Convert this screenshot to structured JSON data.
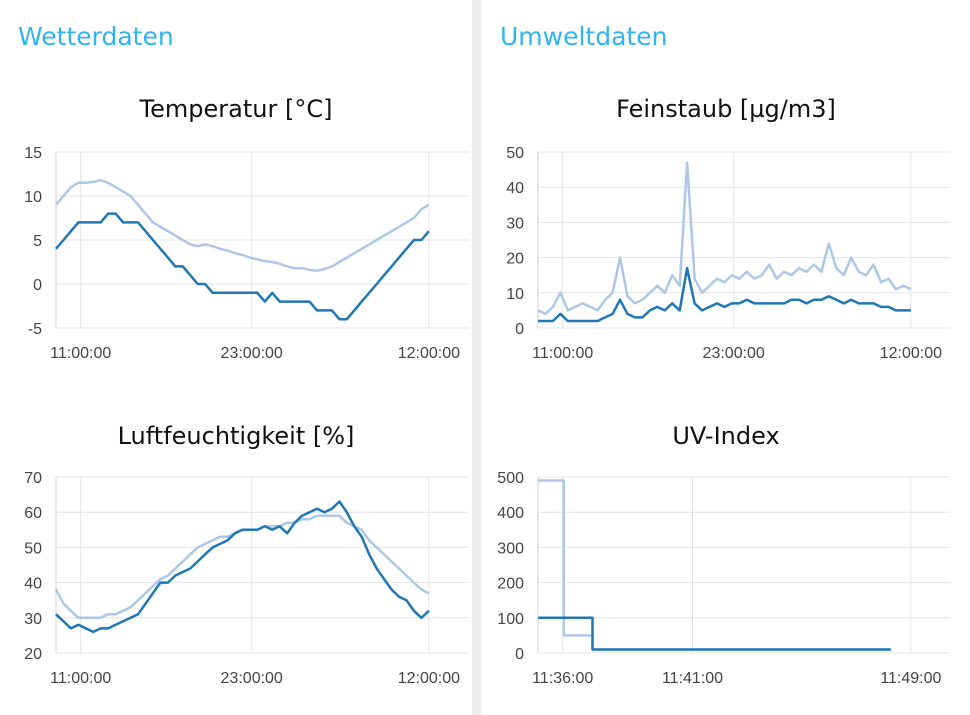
{
  "sections": {
    "weather": "Wetterdaten",
    "environment": "Umweltdaten"
  },
  "colors": {
    "series_dark": "#1f77b4",
    "series_light": "#aec7e8",
    "section_title": "#2eb4f0"
  },
  "chart_data": [
    {
      "id": "temperature",
      "type": "line",
      "title": "Temperatur [°C]",
      "xticks": [
        "11:00:00",
        "23:00:00",
        "12:00:00"
      ],
      "yticks": [
        -5,
        0,
        5,
        10,
        15
      ],
      "ylim": [
        -5,
        15
      ],
      "xlim": [
        0,
        25
      ],
      "grid": true,
      "series": [
        {
          "color": "#aec7e8",
          "x": [
            0,
            0.5,
            1,
            1.5,
            2,
            2.5,
            3,
            3.5,
            4,
            4.5,
            5,
            5.5,
            6,
            6.5,
            7,
            7.5,
            8,
            8.5,
            9,
            9.5,
            10,
            10.5,
            11,
            11.5,
            12,
            12.5,
            13,
            13.5,
            14,
            14.5,
            15,
            15.5,
            16,
            16.5,
            17,
            17.5,
            18,
            18.5,
            19,
            19.5,
            20,
            20.5,
            21,
            21.5,
            22,
            22.5,
            23,
            23.5,
            24,
            24.5,
            25
          ],
          "y": [
            9,
            10,
            11,
            11.5,
            11.5,
            11.6,
            11.8,
            11.5,
            11,
            10.5,
            10,
            9,
            8,
            7,
            6.5,
            6,
            5.5,
            5,
            4.5,
            4.3,
            4.5,
            4.3,
            4,
            3.8,
            3.5,
            3.3,
            3,
            2.8,
            2.6,
            2.5,
            2.3,
            2,
            1.8,
            1.8,
            1.6,
            1.5,
            1.7,
            2,
            2.5,
            3,
            3.5,
            4,
            4.5,
            5,
            5.5,
            6,
            6.5,
            7,
            7.5,
            8.5,
            9
          ]
        },
        {
          "color": "#1f77b4",
          "x": [
            0,
            0.5,
            1,
            1.5,
            2,
            2.5,
            3,
            3.5,
            4,
            4.5,
            5,
            5.5,
            6,
            6.5,
            7,
            7.5,
            8,
            8.5,
            9,
            9.5,
            10,
            10.5,
            11,
            11.5,
            12,
            12.5,
            13,
            13.5,
            14,
            14.5,
            15,
            15.5,
            16,
            16.5,
            17,
            17.5,
            18,
            18.5,
            19,
            19.5,
            20,
            20.5,
            21,
            21.5,
            22,
            22.5,
            23,
            23.5,
            24,
            24.5,
            25
          ],
          "y": [
            4,
            5,
            6,
            7,
            7,
            7,
            7,
            8,
            8,
            7,
            7,
            7,
            6,
            5,
            4,
            3,
            2,
            2,
            1,
            0,
            0,
            -1,
            -1,
            -1,
            -1,
            -1,
            -1,
            -1,
            -2,
            -1,
            -2,
            -2,
            -2,
            -2,
            -2,
            -3,
            -3,
            -3,
            -4,
            -4,
            -3,
            -2,
            -1,
            0,
            1,
            2,
            3,
            4,
            5,
            5,
            6
          ]
        }
      ]
    },
    {
      "id": "humidity",
      "type": "line",
      "title": "Luftfeuchtigkeit [%]",
      "xticks": [
        "11:00:00",
        "23:00:00",
        "12:00:00"
      ],
      "yticks": [
        20,
        30,
        40,
        50,
        60,
        70
      ],
      "ylim": [
        20,
        70
      ],
      "xlim": [
        0,
        25
      ],
      "grid": true,
      "series": [
        {
          "color": "#aec7e8",
          "x": [
            0,
            0.5,
            1,
            1.5,
            2,
            2.5,
            3,
            3.5,
            4,
            4.5,
            5,
            5.5,
            6,
            6.5,
            7,
            7.5,
            8,
            8.5,
            9,
            9.5,
            10,
            10.5,
            11,
            11.5,
            12,
            12.5,
            13,
            13.5,
            14,
            14.5,
            15,
            15.5,
            16,
            16.5,
            17,
            17.5,
            18,
            18.5,
            19,
            19.5,
            20,
            20.5,
            21,
            21.5,
            22,
            22.5,
            23,
            23.5,
            24,
            24.5,
            25
          ],
          "y": [
            38,
            34,
            32,
            30,
            30,
            30,
            30,
            31,
            31,
            32,
            33,
            35,
            37,
            39,
            41,
            42,
            44,
            46,
            48,
            50,
            51,
            52,
            53,
            53,
            54,
            55,
            55,
            55,
            56,
            56,
            56,
            57,
            57,
            58,
            58,
            59,
            59,
            59,
            59,
            57,
            56,
            55,
            52,
            50,
            48,
            46,
            44,
            42,
            40,
            38,
            37
          ]
        },
        {
          "color": "#1f77b4",
          "x": [
            0,
            0.5,
            1,
            1.5,
            2,
            2.5,
            3,
            3.5,
            4,
            4.5,
            5,
            5.5,
            6,
            6.5,
            7,
            7.5,
            8,
            8.5,
            9,
            9.5,
            10,
            10.5,
            11,
            11.5,
            12,
            12.5,
            13,
            13.5,
            14,
            14.5,
            15,
            15.5,
            16,
            16.5,
            17,
            17.5,
            18,
            18.5,
            19,
            19.5,
            20,
            20.5,
            21,
            21.5,
            22,
            22.5,
            23,
            23.5,
            24,
            24.5,
            25
          ],
          "y": [
            31,
            29,
            27,
            28,
            27,
            26,
            27,
            27,
            28,
            29,
            30,
            31,
            34,
            37,
            40,
            40,
            42,
            43,
            44,
            46,
            48,
            50,
            51,
            52,
            54,
            55,
            55,
            55,
            56,
            55,
            56,
            54,
            57,
            59,
            60,
            61,
            60,
            61,
            63,
            60,
            56,
            53,
            48,
            44,
            41,
            38,
            36,
            35,
            32,
            30,
            32
          ]
        }
      ]
    },
    {
      "id": "particulate",
      "type": "line",
      "title": "Feinstaub [µg/m3]",
      "xticks": [
        "11:00:00",
        "23:00:00",
        "12:00:00"
      ],
      "yticks": [
        0,
        10,
        20,
        30,
        40,
        50
      ],
      "ylim": [
        0,
        50
      ],
      "xlim": [
        0,
        25
      ],
      "grid": true,
      "series": [
        {
          "color": "#aec7e8",
          "x": [
            0,
            0.5,
            1,
            1.5,
            2,
            2.5,
            3,
            3.5,
            4,
            4.5,
            5,
            5.5,
            6,
            6.5,
            7,
            7.5,
            8,
            8.5,
            9,
            9.5,
            10,
            10.5,
            11,
            11.5,
            12,
            12.5,
            13,
            13.5,
            14,
            14.5,
            15,
            15.5,
            16,
            16.5,
            17,
            17.5,
            18,
            18.5,
            19,
            19.5,
            20,
            20.5,
            21,
            21.5,
            22,
            22.5,
            23,
            23.5,
            24,
            24.5,
            25
          ],
          "y": [
            5,
            4,
            6,
            10,
            5,
            6,
            7,
            6,
            5,
            8,
            10,
            20,
            9,
            7,
            8,
            10,
            12,
            10,
            15,
            12,
            47,
            14,
            10,
            12,
            14,
            13,
            15,
            14,
            16,
            14,
            15,
            18,
            14,
            16,
            15,
            17,
            16,
            18,
            16,
            24,
            17,
            15,
            20,
            16,
            15,
            18,
            13,
            14,
            11,
            12,
            11
          ]
        },
        {
          "color": "#1f77b4",
          "x": [
            0,
            0.5,
            1,
            1.5,
            2,
            2.5,
            3,
            3.5,
            4,
            4.5,
            5,
            5.5,
            6,
            6.5,
            7,
            7.5,
            8,
            8.5,
            9,
            9.5,
            10,
            10.5,
            11,
            11.5,
            12,
            12.5,
            13,
            13.5,
            14,
            14.5,
            15,
            15.5,
            16,
            16.5,
            17,
            17.5,
            18,
            18.5,
            19,
            19.5,
            20,
            20.5,
            21,
            21.5,
            22,
            22.5,
            23,
            23.5,
            24,
            24.5,
            25
          ],
          "y": [
            2,
            2,
            2,
            4,
            2,
            2,
            2,
            2,
            2,
            3,
            4,
            8,
            4,
            3,
            3,
            5,
            6,
            5,
            7,
            5,
            17,
            7,
            5,
            6,
            7,
            6,
            7,
            7,
            8,
            7,
            7,
            7,
            7,
            7,
            8,
            8,
            7,
            8,
            8,
            9,
            8,
            7,
            8,
            7,
            7,
            7,
            6,
            6,
            5,
            5,
            5
          ]
        }
      ]
    },
    {
      "id": "uv",
      "type": "line",
      "title": "UV-Index",
      "xticks": [
        "11:36:00",
        "11:41:00",
        "11:49:00"
      ],
      "yticks": [
        0,
        100,
        200,
        300,
        400,
        500
      ],
      "ylim": [
        0,
        500
      ],
      "xlim": [
        0,
        13
      ],
      "grid": true,
      "series": [
        {
          "color": "#aec7e8",
          "x": [
            0,
            0.9,
            0.9,
            1.9,
            1.9,
            12.3
          ],
          "y": [
            490,
            490,
            50,
            50,
            10,
            10
          ]
        },
        {
          "color": "#1f77b4",
          "x": [
            0,
            1.9,
            1.9,
            12.3
          ],
          "y": [
            100,
            100,
            10,
            10
          ]
        }
      ]
    }
  ]
}
